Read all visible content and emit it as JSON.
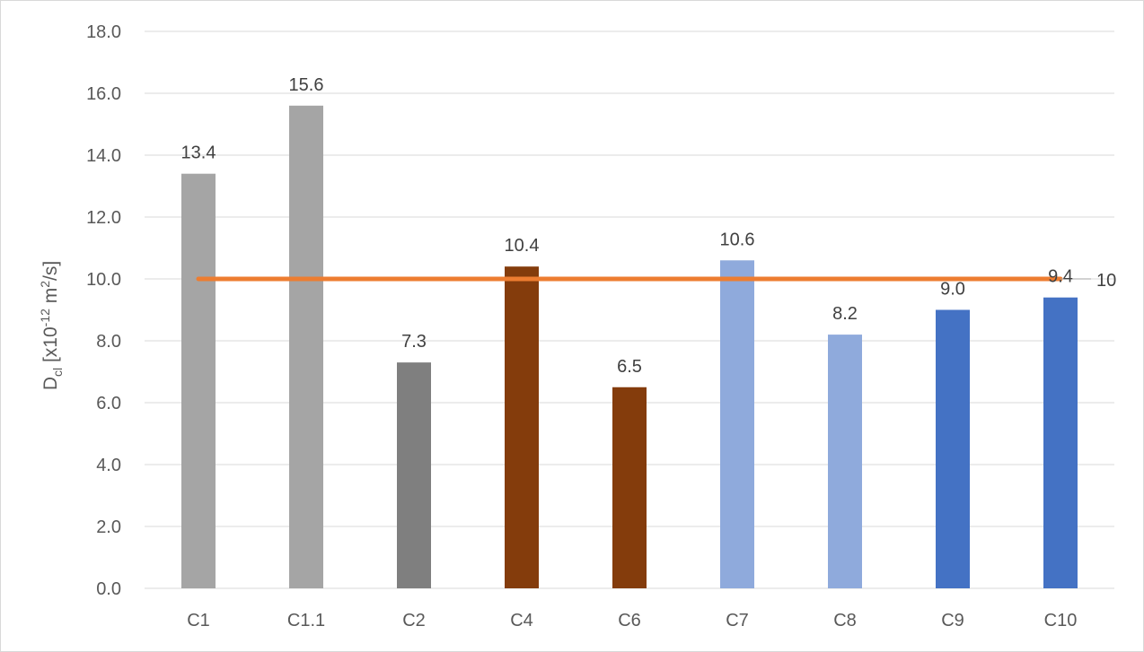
{
  "chart_data": {
    "type": "bar",
    "ylabel": {
      "main": "D",
      "sub": "cl",
      "mid": " [x10",
      "exp": "-12",
      "unit": " m",
      "unit_exp": "2",
      "tail": "/s]"
    },
    "ylim": [
      0,
      18
    ],
    "y_ticks": [
      "0.0",
      "2.0",
      "4.0",
      "6.0",
      "8.0",
      "10.0",
      "12.0",
      "14.0",
      "16.0",
      "18.0"
    ],
    "y_tick_values": [
      0,
      2,
      4,
      6,
      8,
      10,
      12,
      14,
      16,
      18
    ],
    "grid": true,
    "legend": "none",
    "categories": [
      "C1",
      "C1.1",
      "C2",
      "C4",
      "C6",
      "C7",
      "C8",
      "C9",
      "C10"
    ],
    "values": [
      13.4,
      15.6,
      7.3,
      10.4,
      6.5,
      10.6,
      8.2,
      9.0,
      9.4
    ],
    "data_labels": [
      "13.4",
      "15.6",
      "7.3",
      "10.4",
      "6.5",
      "10.6",
      "8.2",
      "9.0",
      "9.4"
    ],
    "bar_colors": [
      "#a5a5a5",
      "#a5a5a5",
      "#7f7f7f",
      "#843c0c",
      "#843c0c",
      "#8faadc",
      "#8faadc",
      "#4472c4",
      "#4472c4"
    ],
    "reference_line": {
      "value": 10,
      "label": "10",
      "color": "#ed7d31"
    }
  }
}
